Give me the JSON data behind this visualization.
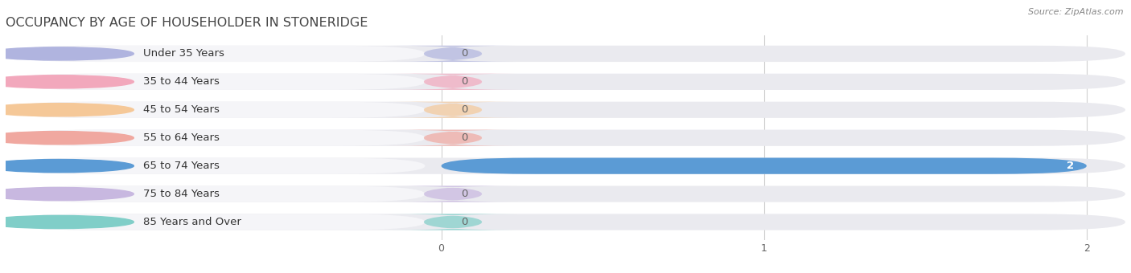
{
  "title": "OCCUPANCY BY AGE OF HOUSEHOLDER IN STONERIDGE",
  "source_text": "Source: ZipAtlas.com",
  "categories": [
    "Under 35 Years",
    "35 to 44 Years",
    "45 to 54 Years",
    "55 to 64 Years",
    "65 to 74 Years",
    "75 to 84 Years",
    "85 Years and Over"
  ],
  "values": [
    0,
    0,
    0,
    0,
    2,
    0,
    0
  ],
  "bar_colors": [
    "#b0b4df",
    "#f2a8bc",
    "#f5c898",
    "#f0a8a0",
    "#5b9bd5",
    "#c8b8e0",
    "#80cec8"
  ],
  "bar_bg_color": "#eaeaef",
  "label_pill_color": "#f5f5f8",
  "xlim_data": [
    0,
    2
  ],
  "xticks": [
    0,
    1,
    2
  ],
  "background_color": "#ffffff",
  "title_fontsize": 11.5,
  "label_fontsize": 9.5,
  "tick_fontsize": 9,
  "value_label_color_active": "#ffffff",
  "value_label_color_zero": "#666666",
  "bar_height": 0.58,
  "grid_color": "#d0d0d0",
  "source_fontsize": 8,
  "source_color": "#888888"
}
